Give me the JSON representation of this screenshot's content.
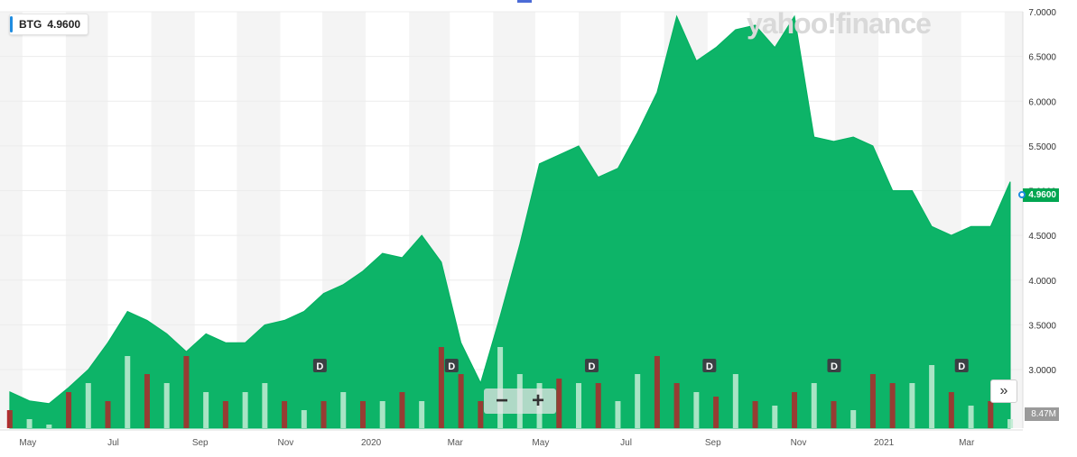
{
  "legend": {
    "symbol": "BTG",
    "value": "4.9600"
  },
  "watermark": "yahoo!finance",
  "current_price_label": "4.9600",
  "volume_label": "8.47M",
  "zoom": {
    "minus": "−",
    "plus": "+"
  },
  "scroll_label": "»",
  "dividend_marker": "D",
  "colors": {
    "area": "#00b060",
    "up_bar": "#c5ecd6",
    "down_bar": "#b0292b",
    "shade": "#f4f4f4",
    "grid": "#ececec",
    "accent": "#1f8ce0"
  },
  "chart_data": {
    "type": "area",
    "title": "",
    "xlabel": "",
    "ylabel": "",
    "ylim": [
      2.5,
      7.0
    ],
    "y_ticks": [
      "7.0000",
      "6.5000",
      "6.0000",
      "5.5000",
      "5.0000",
      "4.5000",
      "4.0000",
      "3.5000",
      "3.0000"
    ],
    "x_tick_labels": [
      "May",
      "Jul",
      "Sep",
      "Nov",
      "2020",
      "Mar",
      "May",
      "Jul",
      "Sep",
      "Nov",
      "2021",
      "Mar"
    ],
    "dates": [
      "2019-04-22",
      "2019-05-06",
      "2019-05-20",
      "2019-06-03",
      "2019-06-17",
      "2019-07-01",
      "2019-07-15",
      "2019-07-29",
      "2019-08-12",
      "2019-08-26",
      "2019-09-09",
      "2019-09-23",
      "2019-10-07",
      "2019-10-21",
      "2019-11-04",
      "2019-11-18",
      "2019-12-02",
      "2019-12-16",
      "2019-12-30",
      "2020-01-13",
      "2020-01-27",
      "2020-02-10",
      "2020-02-24",
      "2020-03-09",
      "2020-03-23",
      "2020-04-06",
      "2020-04-20",
      "2020-05-04",
      "2020-05-18",
      "2020-06-01",
      "2020-06-15",
      "2020-06-29",
      "2020-07-13",
      "2020-07-27",
      "2020-08-10",
      "2020-08-24",
      "2020-09-07",
      "2020-09-21",
      "2020-10-05",
      "2020-10-19",
      "2020-11-02",
      "2020-11-16",
      "2020-11-30",
      "2020-12-14",
      "2020-12-28",
      "2021-01-11",
      "2021-01-25",
      "2021-02-08",
      "2021-02-22",
      "2021-03-08",
      "2021-03-22",
      "2021-04-05"
    ],
    "series": [
      {
        "values": [
          2.75,
          2.65,
          2.62,
          2.8,
          3.0,
          3.3,
          3.65,
          3.55,
          3.4,
          3.2,
          3.4,
          3.3,
          3.3,
          3.5,
          3.55,
          3.65,
          3.85,
          3.95,
          4.1,
          4.3,
          4.25,
          4.5,
          4.2,
          3.3,
          2.85,
          3.6,
          4.4,
          5.3,
          5.4,
          5.5,
          5.15,
          5.25,
          5.65,
          6.1,
          6.95,
          6.45,
          6.6,
          6.8,
          6.85,
          6.6,
          6.95,
          5.6,
          5.55,
          5.6,
          5.5,
          5.0,
          5.0,
          4.6,
          4.5,
          4.6,
          4.6,
          5.1
        ]
      }
    ],
    "volume_series": {
      "name": "Volume",
      "values": [
        2.7,
        2.6,
        2.5,
        2.9,
        3.0,
        2.8,
        3.3,
        3.1,
        3.0,
        3.3,
        2.9,
        2.8,
        2.9,
        3.0,
        2.8,
        2.7,
        2.8,
        2.9,
        2.8,
        2.8,
        2.9,
        2.8,
        3.4,
        3.1,
        2.8,
        3.4,
        3.1,
        3.0,
        3.05,
        3.0,
        3.0,
        2.8,
        3.1,
        3.3,
        3.0,
        2.9,
        2.85,
        3.1,
        2.8,
        2.75,
        2.9,
        3.0,
        2.8,
        2.7,
        3.1,
        3.0,
        3.0,
        3.2,
        2.9,
        2.75,
        2.8,
        2.6
      ],
      "direction": [
        "d",
        "u",
        "u",
        "d",
        "u",
        "d",
        "u",
        "d",
        "u",
        "d",
        "u",
        "d",
        "u",
        "u",
        "d",
        "u",
        "d",
        "u",
        "d",
        "u",
        "d",
        "u",
        "d",
        "d",
        "d",
        "u",
        "u",
        "u",
        "d",
        "u",
        "d",
        "u",
        "u",
        "d",
        "d",
        "u",
        "d",
        "u",
        "d",
        "u",
        "d",
        "u",
        "d",
        "u",
        "d",
        "d",
        "u",
        "u",
        "d",
        "u",
        "d",
        "u"
      ]
    },
    "dividend_dates": [
      "2019-11-29",
      "2020-03-02",
      "2020-06-10",
      "2020-09-02",
      "2020-11-30",
      "2021-03-01"
    ]
  }
}
